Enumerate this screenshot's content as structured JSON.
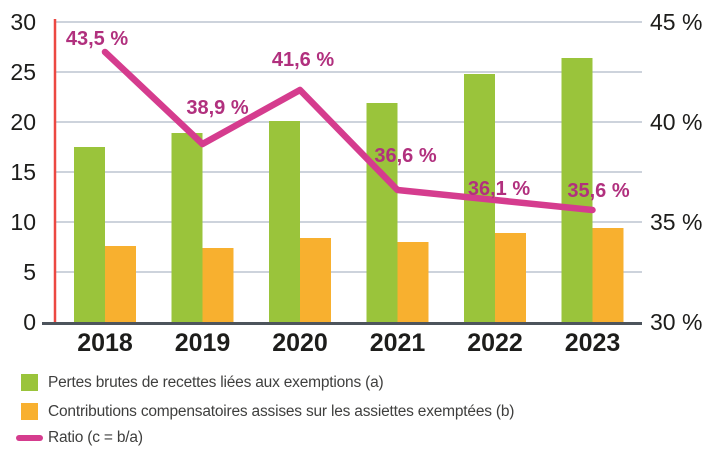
{
  "chart_data": {
    "type": "bar",
    "subtype": "grouped-bar-with-line-overlay",
    "categories": [
      "2018",
      "2019",
      "2020",
      "2021",
      "2022",
      "2023"
    ],
    "series": [
      {
        "name": "Pertes brutes de recettes liées aux exemptions (a)",
        "type": "bar",
        "axis": "left",
        "color": "#9AC43B",
        "values": [
          17.5,
          18.9,
          20.1,
          21.9,
          24.8,
          26.4
        ]
      },
      {
        "name": "Contributions compensatoires assises sur les assiettes exemptées (b)",
        "type": "bar",
        "axis": "left",
        "color": "#F8B02F",
        "values": [
          7.6,
          7.4,
          8.4,
          8.0,
          8.9,
          9.4
        ]
      },
      {
        "name": "Ratio (c = b/a)",
        "type": "line",
        "axis": "right",
        "color": "#D53C8E",
        "label_color": "#B1307E",
        "values": [
          43.5,
          38.9,
          41.6,
          36.6,
          36.1,
          35.6
        ],
        "value_labels": [
          "43,5 %",
          "38,9 %",
          "41,6 %",
          "36,6 %",
          "36,1 %",
          "35,6 %"
        ]
      }
    ],
    "left_axis": {
      "min": 0,
      "max": 30,
      "tick_values": [
        30,
        25,
        20,
        15,
        10,
        5,
        0
      ],
      "tick_labels": [
        "30",
        "25",
        "20",
        "15",
        "10",
        "5",
        "0"
      ],
      "axis_color": "#EC4842"
    },
    "right_axis": {
      "min": 30,
      "max": 45,
      "tick_values": [
        45,
        40,
        35,
        30
      ],
      "tick_labels": [
        "45 %",
        "40 %",
        "35 %",
        "30 %"
      ]
    },
    "grid": true,
    "legend_position": "bottom-left",
    "colors": {
      "gridline": "#CDD3DC",
      "baseline": "#4D545C",
      "tick_text": "#1D1D1B"
    }
  }
}
